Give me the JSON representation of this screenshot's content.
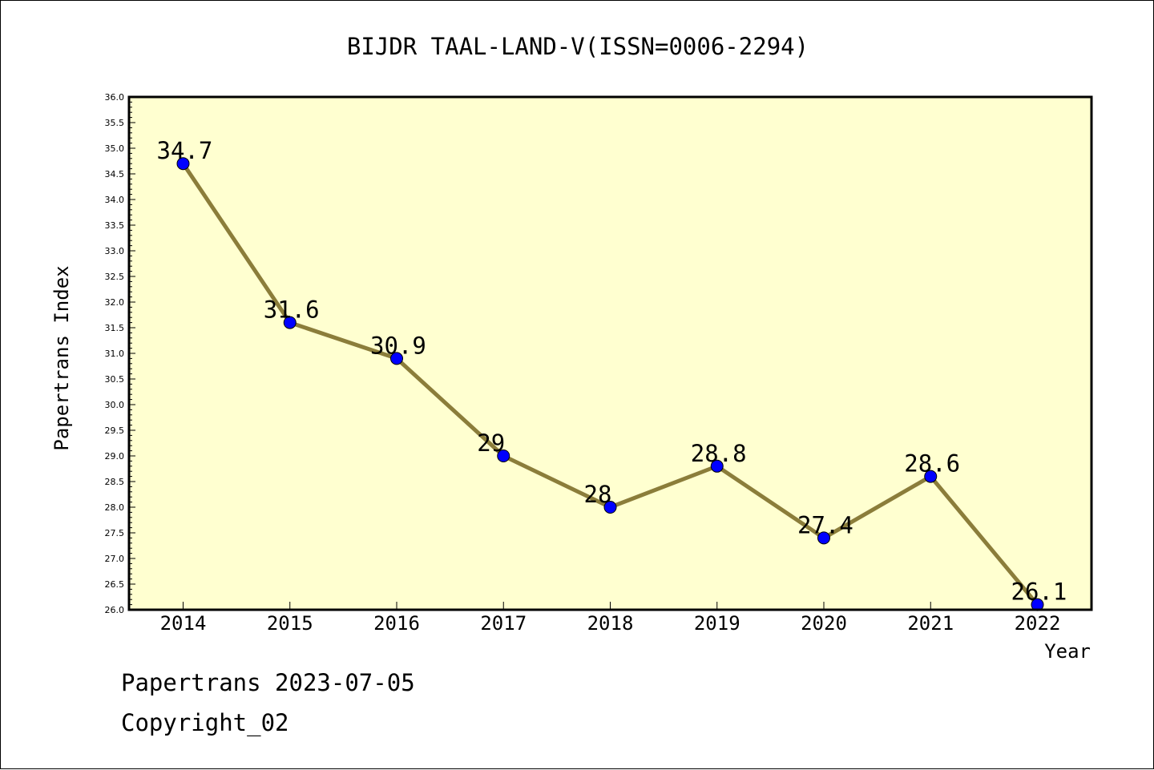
{
  "chart_data": {
    "type": "line",
    "title": "BIJDR TAAL-LAND-V(ISSN=0006-2294)",
    "xlabel": "Year",
    "ylabel": "Papertrans Index",
    "categories": [
      "2014",
      "2015",
      "2016",
      "2017",
      "2018",
      "2019",
      "2020",
      "2021",
      "2022"
    ],
    "series": [
      {
        "values": [
          34.7,
          31.6,
          30.9,
          29,
          28,
          28.8,
          27.4,
          28.6,
          26.1
        ],
        "data_labels": [
          "34.7",
          "31.6",
          "30.9",
          "29",
          "28",
          "28.8",
          "27.4",
          "28.6",
          "26.1"
        ]
      }
    ],
    "ylim": [
      26.0,
      36.0
    ],
    "y_ticks": [
      "26.0",
      "26.5",
      "27.0",
      "27.5",
      "28.0",
      "28.5",
      "29.0",
      "29.5",
      "30.0",
      "30.5",
      "31.0",
      "31.5",
      "32.0",
      "32.5",
      "33.0",
      "33.5",
      "34.0",
      "34.5",
      "35.0",
      "35.5",
      "36.0"
    ],
    "grid": false,
    "colors": {
      "line": "#8B7D3A",
      "marker": "#0000FF",
      "plot_background": "#FFFFD0"
    }
  },
  "footer": {
    "date_text": "Papertrans 2023-07-05",
    "copyright_text": "Copyright_02"
  }
}
